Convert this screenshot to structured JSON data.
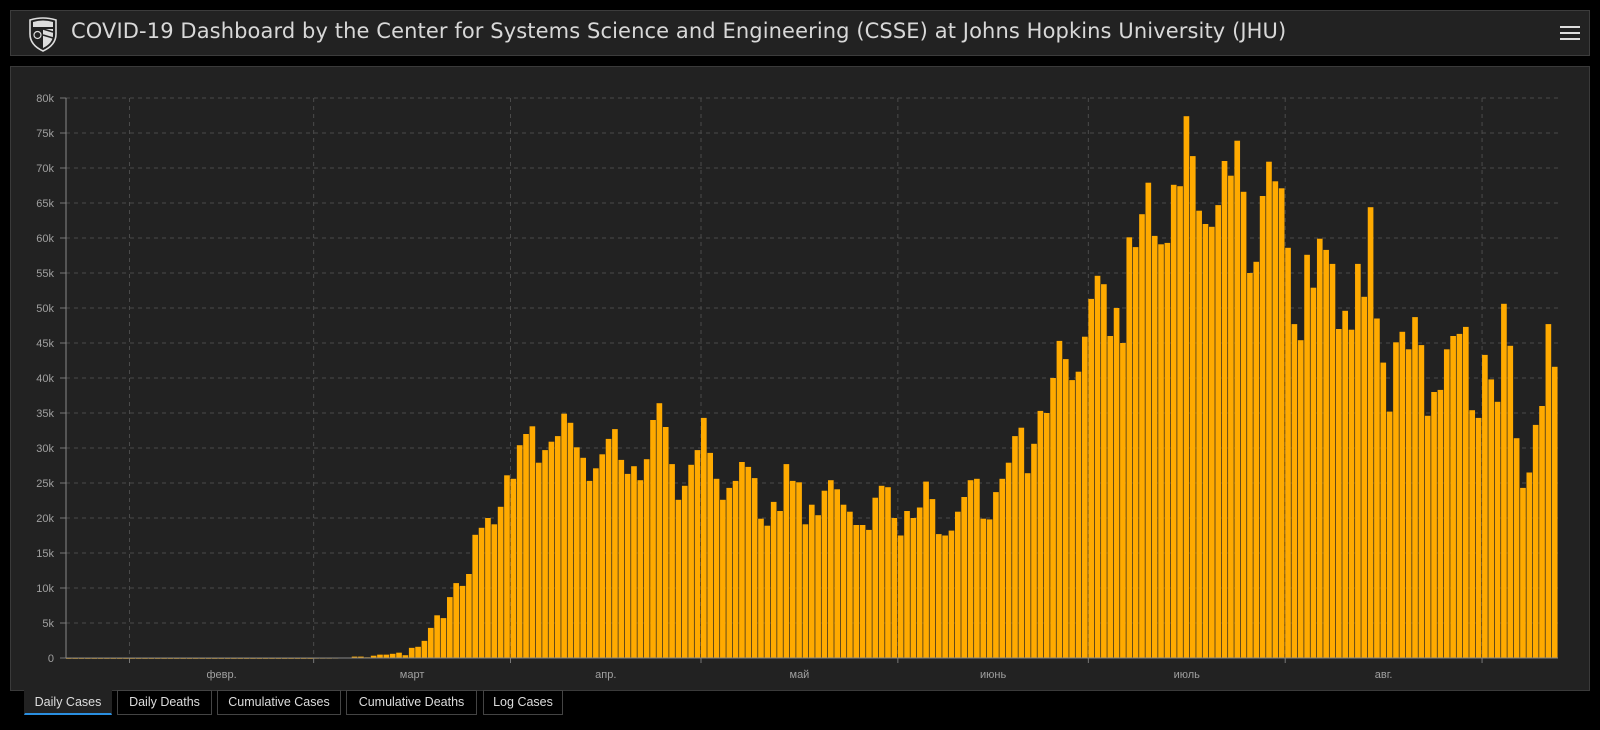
{
  "header": {
    "title": "COVID-19 Dashboard by the Center for Systems Science and Engineering (CSSE) at Johns Hopkins University (JHU)",
    "logo_icon": "jhu-shield-logo",
    "menu_icon": "hamburger-menu-icon"
  },
  "tabs": [
    {
      "label": "Daily Cases",
      "active": true
    },
    {
      "label": "Daily Deaths",
      "active": false
    },
    {
      "label": "Cumulative Cases",
      "active": false
    },
    {
      "label": "Cumulative Deaths",
      "active": false
    },
    {
      "label": "Log Cases",
      "active": false
    }
  ],
  "chart_data": {
    "type": "bar",
    "title": "",
    "xlabel": "",
    "ylabel": "",
    "x_range": [
      "2020-01-22",
      "2020-09-12"
    ],
    "ylim": [
      0,
      80000
    ],
    "y_ticks": [
      "0",
      "5k",
      "10k",
      "15k",
      "20k",
      "25k",
      "30k",
      "35k",
      "40k",
      "45k",
      "50k",
      "55k",
      "60k",
      "65k",
      "70k",
      "75k",
      "80k"
    ],
    "x_ticks": [
      "февр.",
      "март",
      "апр.",
      "май",
      "июнь",
      "июль",
      "авг."
    ],
    "grid": true,
    "bar_color": "#ffaa00",
    "values": [
      0,
      0,
      0,
      0,
      0,
      0,
      0,
      0,
      0,
      0,
      0,
      0,
      0,
      0,
      0,
      0,
      0,
      0,
      0,
      0,
      0,
      0,
      0,
      0,
      0,
      0,
      0,
      0,
      0,
      0,
      0,
      0,
      0,
      0,
      0,
      0,
      0,
      0,
      0,
      20,
      20,
      20,
      30,
      50,
      50,
      200,
      200,
      100,
      330,
      480,
      480,
      600,
      760,
      400,
      1450,
      1600,
      2450,
      4300,
      6100,
      5700,
      8700,
      10700,
      10300,
      12000,
      17600,
      18600,
      20000,
      19100,
      21600,
      26100,
      25600,
      30400,
      32000,
      33100,
      27900,
      29700,
      30900,
      31700,
      34900,
      33600,
      30100,
      28600,
      25300,
      27100,
      29100,
      31300,
      32700,
      28300,
      26300,
      27400,
      25400,
      28400,
      34000,
      36400,
      33000,
      27700,
      22600,
      24600,
      27600,
      29700,
      34300,
      29300,
      25600,
      22600,
      24300,
      25300,
      28000,
      27300,
      25700,
      19900,
      18900,
      22300,
      21000,
      27700,
      25300,
      25100,
      19100,
      21900,
      20400,
      23900,
      25400,
      24100,
      21900,
      20900,
      19000,
      19000,
      18300,
      22900,
      24600,
      24400,
      20000,
      17500,
      21000,
      20000,
      21500,
      25200,
      22700,
      17700,
      17500,
      18200,
      20900,
      23000,
      25400,
      25600,
      19900,
      19800,
      23700,
      25600,
      27900,
      31700,
      32900,
      26400,
      30600,
      35300,
      35000,
      40000,
      45300,
      42700,
      39700,
      40900,
      45900,
      51300,
      54600,
      53400,
      46000,
      50000,
      45000,
      60100,
      58700,
      63400,
      67900,
      60300,
      59100,
      59300,
      67600,
      67400,
      77400,
      71700,
      63900,
      62000,
      61600,
      64700,
      71000,
      68900,
      73900,
      66600,
      55000,
      56600,
      66000,
      70900,
      68100,
      67100,
      58600,
      47700,
      45400,
      57600,
      52900,
      59900,
      58300,
      56300,
      47000,
      49600,
      46900,
      56300,
      51600,
      64400,
      48500,
      42200,
      35200,
      45100,
      46600,
      44100,
      48700,
      44700,
      34600,
      38000,
      38300,
      44100,
      46000,
      46300,
      47300,
      35400,
      34300,
      43300,
      39800,
      36600,
      50600,
      44600,
      31400,
      24300,
      26500,
      33300,
      36000,
      47700,
      41600
    ]
  }
}
